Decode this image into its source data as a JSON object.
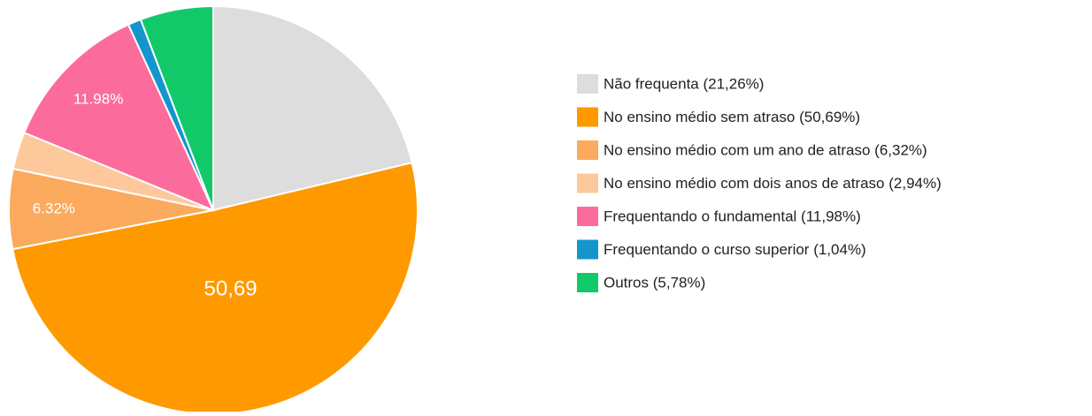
{
  "chart_data": {
    "type": "pie",
    "categories": [
      "Não frequenta (21,26%)",
      "No ensino médio sem atraso (50,69%)",
      "No ensino médio com um ano de atraso (6,32%)",
      "No ensino médio com dois anos de atraso (2,94%)",
      "Frequentando o fundamental (11,98%)",
      "Frequentando o curso superior (1,04%)",
      "Outros (5,78%)"
    ],
    "values": [
      21.26,
      50.69,
      6.32,
      2.94,
      11.98,
      1.04,
      5.78
    ],
    "value_labels": [
      null,
      "50,69",
      "6.32%",
      null,
      "11.98%",
      null,
      null
    ],
    "colors": [
      "#dddddd",
      "#ff9900",
      "#fbaa5e",
      "#fdc99c",
      "#fb6c9d",
      "#1396cc",
      "#12c96a"
    ],
    "legend": "right"
  }
}
